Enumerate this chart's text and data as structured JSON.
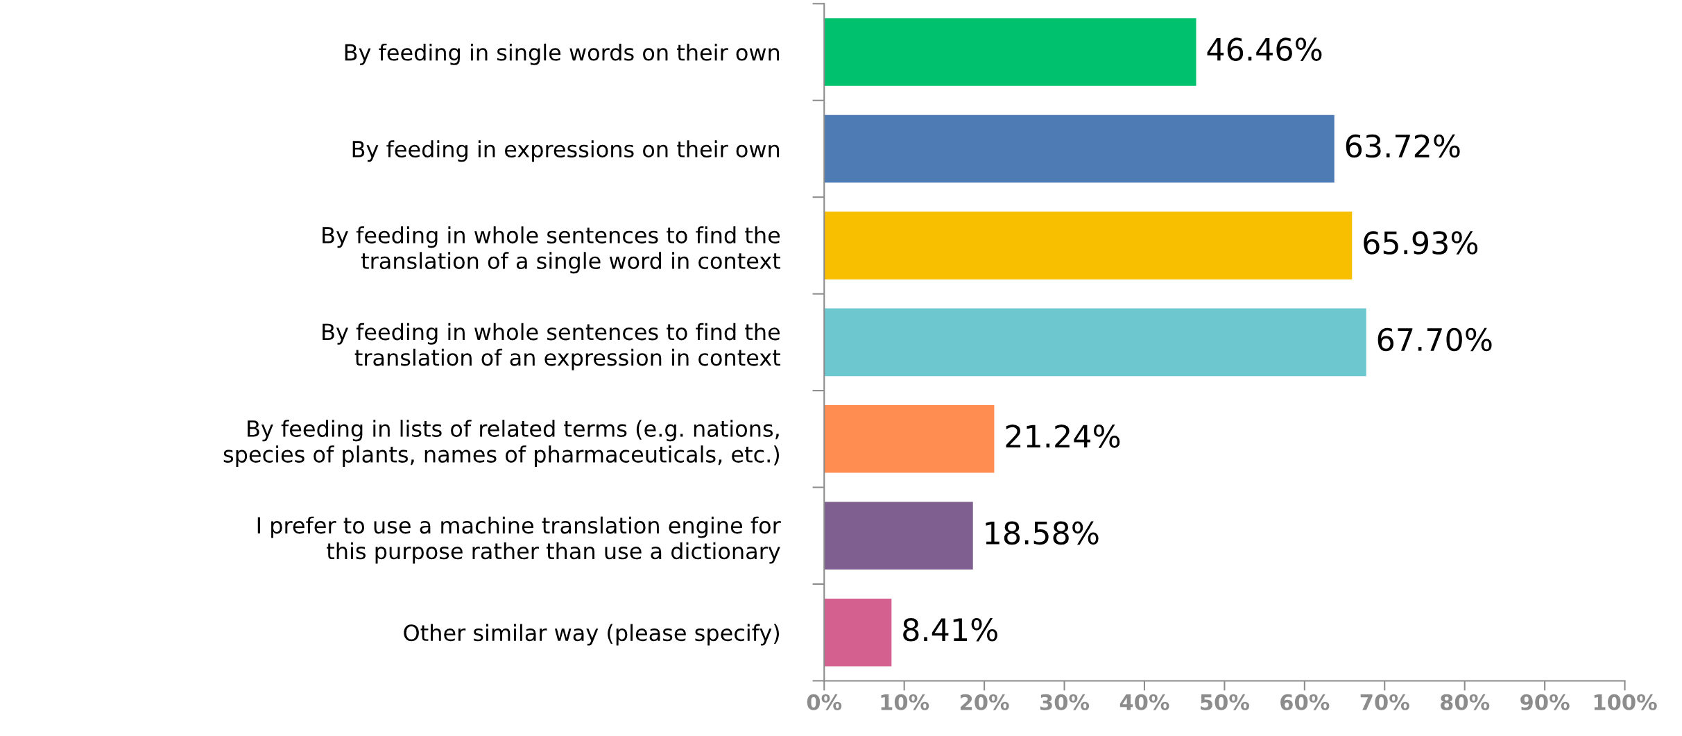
{
  "chart_data": {
    "type": "bar",
    "orientation": "horizontal",
    "categories": [
      "By feeding in single words on their own",
      "By feeding in expressions on their own",
      "By feeding in whole sentences to find the\ntranslation of a single word in context",
      "By feeding in whole sentences to find the\ntranslation of an expression in context",
      "By feeding in lists of related terms (e.g. nations,\nspecies of plants, names of pharmaceuticals, etc.)",
      "I prefer to use a machine translation engine for\nthis purpose rather than use a dictionary",
      "Other similar way (please specify)"
    ],
    "values": [
      46.46,
      63.72,
      65.93,
      67.7,
      21.24,
      18.58,
      8.41
    ],
    "colors": [
      "#00c16e",
      "#4f7bb5",
      "#f8bf00",
      "#6cc8ce",
      "#ff8c50",
      "#7e5f8f",
      "#d4608f"
    ],
    "value_labels": [
      "46.46%",
      "63.72%",
      "65.93%",
      "67.70%",
      "21.24%",
      "18.58%",
      "8.41%"
    ],
    "xlim": [
      0,
      100
    ],
    "xticks": [
      {
        "value": 0,
        "label": "0%"
      },
      {
        "value": 10,
        "label": "10%"
      },
      {
        "value": 20,
        "label": "20%"
      },
      {
        "value": 30,
        "label": "30%"
      },
      {
        "value": 40,
        "label": "40%"
      },
      {
        "value": 50,
        "label": "50%"
      },
      {
        "value": 60,
        "label": "60%"
      },
      {
        "value": 70,
        "label": "70%"
      },
      {
        "value": 80,
        "label": "80%"
      },
      {
        "value": 90,
        "label": "90%"
      },
      {
        "value": 100,
        "label": "100%"
      }
    ],
    "grid": false,
    "legend": false
  }
}
